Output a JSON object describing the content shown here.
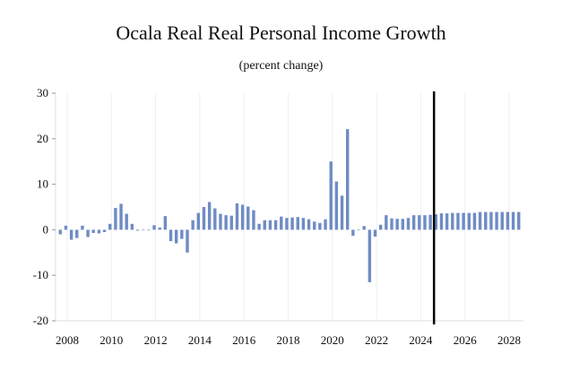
{
  "chart_data": {
    "type": "bar",
    "title": "Ocala Real Real Personal Income Growth",
    "subtitle": "(percent change)",
    "xlabel": "",
    "ylabel": "",
    "ylim": [
      -20,
      30
    ],
    "yticks": [
      30,
      20,
      10,
      0,
      -10,
      -20
    ],
    "xticks": [
      "2008",
      "2010",
      "2012",
      "2014",
      "2016",
      "2018",
      "2020",
      "2022",
      "2024",
      "2026",
      "2028"
    ],
    "x_start": "2007Q4",
    "frequency": "quarterly",
    "forecast_line_x": 2024.6,
    "bar_color": "#6f8cc4",
    "values": [
      -1,
      0.9,
      -2.2,
      -1.8,
      0.9,
      -1.6,
      -0.7,
      -0.8,
      -0.5,
      1.3,
      4.8,
      5.7,
      3.5,
      1.3,
      -0.2,
      -0.1,
      0,
      1.0,
      0.5,
      3.0,
      -2.5,
      -3.0,
      -2.0,
      -5.0,
      2.1,
      3.7,
      5.0,
      6.1,
      4.7,
      3.5,
      3.2,
      3.1,
      5.8,
      5.5,
      5.1,
      4.3,
      1.3,
      2.1,
      2.1,
      2.1,
      2.9,
      2.6,
      2.7,
      2.8,
      2.6,
      2.3,
      1.8,
      1.5,
      2.3,
      15.0,
      10.6,
      7.5,
      22.1,
      -1.3,
      0,
      0.8,
      -11.5,
      -1.5,
      1.1,
      3.2,
      2.5,
      2.4,
      2.4,
      2.6,
      3.2,
      3.2,
      3.2,
      3.3,
      3.4,
      3.6,
      3.6,
      3.7,
      3.7,
      3.7,
      3.7,
      3.7,
      3.9,
      3.9,
      3.9,
      3.9,
      3.9,
      3.9,
      3.9,
      3.9
    ]
  }
}
